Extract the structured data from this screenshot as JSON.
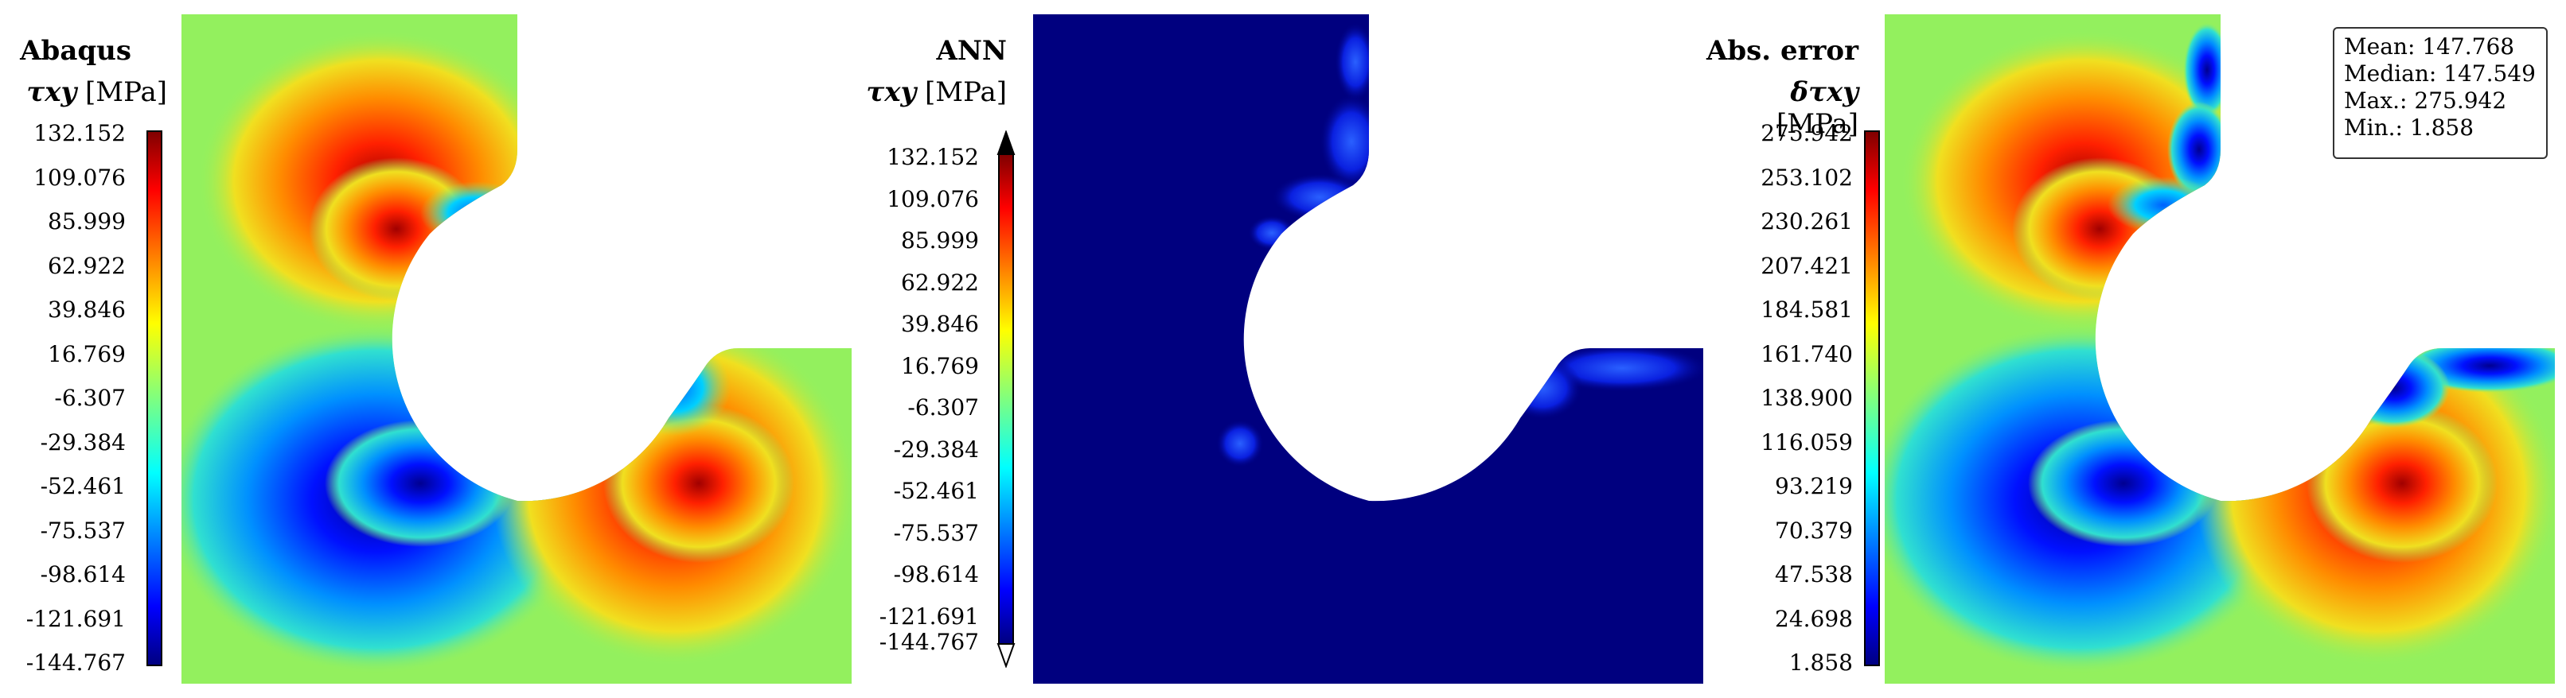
{
  "panels": [
    {
      "title": "Abaqus",
      "quantity_symbol": "τxy",
      "unit": "[MPa]",
      "colorbar_ticks": [
        "132.152",
        "109.076",
        "85.999",
        "62.922",
        "39.846",
        "16.769",
        "-6.307",
        "-29.384",
        "-52.461",
        "-75.537",
        "-98.614",
        "-121.691",
        "-144.767"
      ],
      "colorbar_range": [
        -144.767,
        132.152
      ],
      "colormap": "jet"
    },
    {
      "title": "ANN",
      "quantity_symbol": "τxy",
      "unit": "[MPa]",
      "colorbar_ticks": [
        "132.152",
        "109.076",
        "85.999",
        "62.922",
        "39.846",
        "16.769",
        "-6.307",
        "-29.384",
        "-52.461",
        "-75.537",
        "-98.614",
        "-121.691",
        "-144.767"
      ],
      "colorbar_range": [
        -144.767,
        132.152
      ],
      "colormap": "jet",
      "colorbar_extend": "both"
    },
    {
      "title": "Abs. error",
      "quantity_symbol": "δτxy",
      "unit": "[MPa]",
      "colorbar_ticks": [
        "275.942",
        "253.102",
        "230.261",
        "207.421",
        "184.581",
        "161.740",
        "138.900",
        "116.059",
        "93.219",
        "70.379",
        "47.538",
        "24.698",
        "1.858"
      ],
      "colorbar_range": [
        1.858,
        275.942
      ],
      "colormap": "jet"
    }
  ],
  "stats": {
    "mean": "Mean: 147.768",
    "median": "Median: 147.549",
    "max": "Max.: 275.942",
    "min": "Min.: 1.858"
  },
  "colors": {
    "jet_dark_blue": "#00007f",
    "jet_blue": "#0000ff",
    "jet_cyan": "#00ffff",
    "jet_green": "#7fff7f",
    "jet_yellow": "#ffff00",
    "jet_red": "#ff0000",
    "jet_dark_red": "#7f0000",
    "field_background": "#93f05e"
  }
}
